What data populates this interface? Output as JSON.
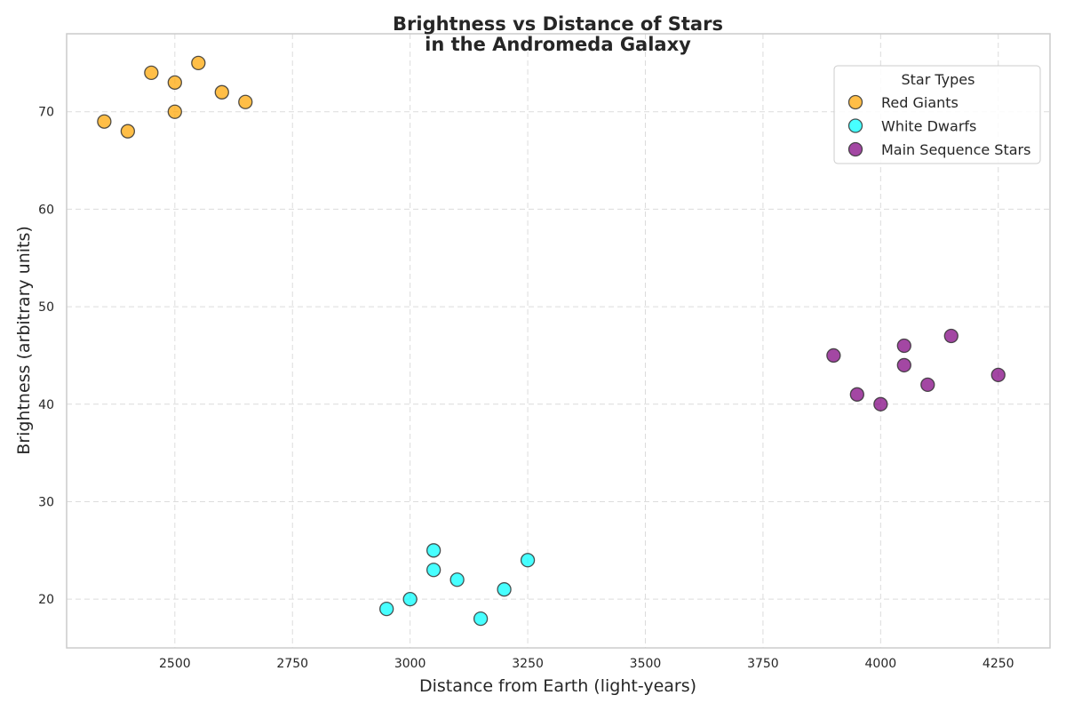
{
  "chart_data": {
    "type": "scatter",
    "title_line1": "Brightness vs Distance of Stars",
    "title_line2": "in the Andromeda Galaxy",
    "xlabel": "Distance from Earth (light-years)",
    "ylabel": "Brightness (arbitrary units)",
    "xlim": [
      2270,
      4360
    ],
    "ylim": [
      15,
      78
    ],
    "xticks": [
      2500,
      2750,
      3000,
      3250,
      3500,
      3750,
      4000,
      4250
    ],
    "yticks": [
      20,
      30,
      40,
      50,
      60,
      70
    ],
    "grid": true,
    "legend": {
      "title": "Star Types",
      "position": "top-right"
    },
    "series": [
      {
        "name": "Red Giants",
        "color": "#FFA500",
        "points": [
          [
            2350,
            69
          ],
          [
            2400,
            68
          ],
          [
            2450,
            74
          ],
          [
            2500,
            73
          ],
          [
            2500,
            70
          ],
          [
            2550,
            75
          ],
          [
            2600,
            72
          ],
          [
            2650,
            71
          ]
        ]
      },
      {
        "name": "White Dwarfs",
        "color": "#00FFFF",
        "points": [
          [
            2950,
            19
          ],
          [
            3000,
            20
          ],
          [
            3050,
            25
          ],
          [
            3050,
            23
          ],
          [
            3100,
            22
          ],
          [
            3150,
            18
          ],
          [
            3200,
            21
          ],
          [
            3250,
            24
          ]
        ]
      },
      {
        "name": "Main Sequence Stars",
        "color": "#800080",
        "points": [
          [
            3900,
            45
          ],
          [
            3950,
            41
          ],
          [
            4000,
            40
          ],
          [
            4050,
            46
          ],
          [
            4050,
            44
          ],
          [
            4100,
            42
          ],
          [
            4150,
            47
          ],
          [
            4250,
            43
          ]
        ]
      }
    ]
  }
}
